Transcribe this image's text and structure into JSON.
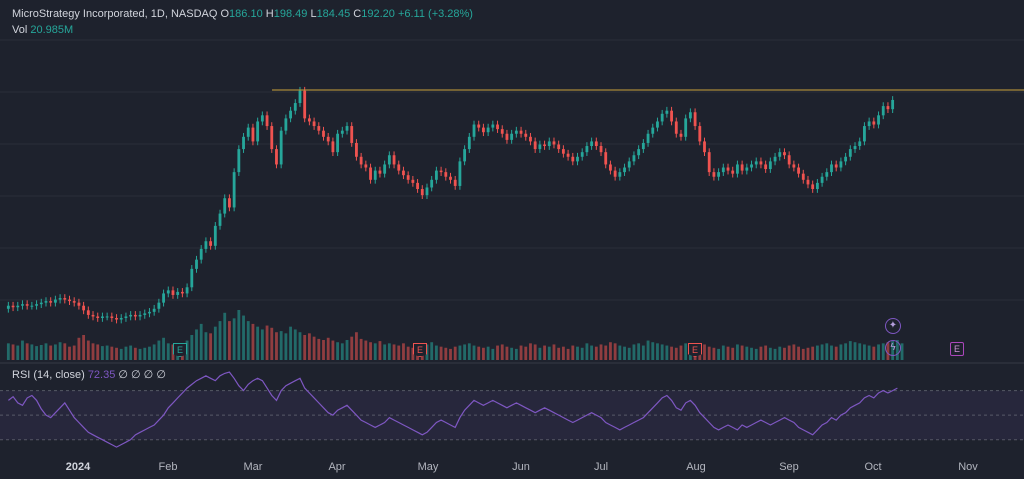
{
  "header": {
    "symbol": "MicroStrategy Incorporated, 1D, NASDAQ",
    "o_label": "O",
    "o_value": "186.10",
    "h_label": "H",
    "h_value": "198.49",
    "l_label": "L",
    "l_value": "184.45",
    "c_label": "C",
    "c_value": "192.20",
    "change": "+6.11 (+3.28%)",
    "vol_label": "Vol",
    "vol_value": "20.985M"
  },
  "rsi_header": {
    "label": "RSI (14, close)",
    "value": "72.35",
    "extras": "∅ ∅ ∅ ∅"
  },
  "events": {
    "earnings_1": "E",
    "earnings_2": "E",
    "earnings_3": "E",
    "earnings_4": "E",
    "dividend_icon": "✦",
    "split_icon": "ϟ"
  },
  "colors": {
    "up": "#26a69a",
    "down": "#ef5350",
    "background": "#1e222d",
    "resistance": "#c9a23a",
    "rsi": "#7e57c2"
  },
  "chart_data": {
    "type": "candlestick",
    "title": "MicroStrategy Incorporated, 1D, NASDAQ",
    "x_axis_labels": [
      "2024",
      "Feb",
      "Mar",
      "Apr",
      "May",
      "Jun",
      "Jul",
      "Aug",
      "Sep",
      "Oct",
      "Nov"
    ],
    "resistance_level": 198.5,
    "price_range": [
      50,
      205
    ],
    "rsi_range": [
      20,
      90
    ],
    "rsi_bands": [
      30,
      70
    ],
    "candles": [
      [
        56,
        58
      ],
      [
        58,
        57
      ],
      [
        57,
        58
      ],
      [
        58,
        59
      ],
      [
        59,
        58
      ],
      [
        58,
        58
      ],
      [
        58,
        59
      ],
      [
        59,
        60
      ],
      [
        60,
        61
      ],
      [
        61,
        60
      ],
      [
        60,
        62
      ],
      [
        62,
        63
      ],
      [
        63,
        62
      ],
      [
        62,
        61
      ],
      [
        61,
        60
      ],
      [
        60,
        58
      ],
      [
        58,
        55
      ],
      [
        55,
        52
      ],
      [
        52,
        51
      ],
      [
        51,
        50
      ],
      [
        50,
        51
      ],
      [
        51,
        51
      ],
      [
        51,
        50
      ],
      [
        50,
        49
      ],
      [
        49,
        50
      ],
      [
        50,
        51
      ],
      [
        51,
        52
      ],
      [
        52,
        51
      ],
      [
        51,
        52
      ],
      [
        52,
        53
      ],
      [
        53,
        54
      ],
      [
        54,
        56
      ],
      [
        56,
        60
      ],
      [
        60,
        66
      ],
      [
        66,
        68
      ],
      [
        68,
        65
      ],
      [
        65,
        67
      ],
      [
        67,
        66
      ],
      [
        66,
        70
      ],
      [
        70,
        82
      ],
      [
        82,
        88
      ],
      [
        88,
        95
      ],
      [
        95,
        100
      ],
      [
        100,
        97
      ],
      [
        97,
        110
      ],
      [
        110,
        118
      ],
      [
        118,
        128
      ],
      [
        128,
        122
      ],
      [
        122,
        145
      ],
      [
        145,
        160
      ],
      [
        160,
        168
      ],
      [
        168,
        174
      ],
      [
        174,
        165
      ],
      [
        165,
        178
      ],
      [
        178,
        182
      ],
      [
        182,
        175
      ],
      [
        175,
        160
      ],
      [
        160,
        150
      ],
      [
        150,
        172
      ],
      [
        172,
        180
      ],
      [
        180,
        185
      ],
      [
        185,
        190
      ],
      [
        190,
        198
      ],
      [
        198,
        180
      ],
      [
        180,
        178
      ],
      [
        178,
        175
      ],
      [
        175,
        172
      ],
      [
        172,
        168
      ],
      [
        168,
        165
      ],
      [
        165,
        158
      ],
      [
        158,
        170
      ],
      [
        170,
        172
      ],
      [
        172,
        175
      ],
      [
        175,
        164
      ],
      [
        164,
        155
      ],
      [
        155,
        150
      ],
      [
        150,
        148
      ],
      [
        148,
        140
      ],
      [
        140,
        146
      ],
      [
        146,
        144
      ],
      [
        144,
        150
      ],
      [
        150,
        156
      ],
      [
        156,
        150
      ],
      [
        150,
        146
      ],
      [
        146,
        143
      ],
      [
        143,
        140
      ],
      [
        140,
        138
      ],
      [
        138,
        134
      ],
      [
        134,
        130
      ],
      [
        130,
        135
      ],
      [
        135,
        140
      ],
      [
        140,
        146
      ],
      [
        146,
        145
      ],
      [
        145,
        142
      ],
      [
        142,
        140
      ],
      [
        140,
        136
      ],
      [
        136,
        152
      ],
      [
        152,
        160
      ],
      [
        160,
        168
      ],
      [
        168,
        176
      ],
      [
        176,
        174
      ],
      [
        174,
        171
      ],
      [
        171,
        174
      ],
      [
        174,
        176
      ],
      [
        176,
        173
      ],
      [
        173,
        170
      ],
      [
        170,
        166
      ],
      [
        166,
        170
      ],
      [
        170,
        172
      ],
      [
        172,
        170
      ],
      [
        170,
        168
      ],
      [
        168,
        165
      ],
      [
        165,
        160
      ],
      [
        160,
        163
      ],
      [
        163,
        162
      ],
      [
        162,
        165
      ],
      [
        165,
        163
      ],
      [
        163,
        160
      ],
      [
        160,
        157
      ],
      [
        157,
        155
      ],
      [
        155,
        152
      ],
      [
        152,
        155
      ],
      [
        155,
        158
      ],
      [
        158,
        162
      ],
      [
        162,
        165
      ],
      [
        165,
        162
      ],
      [
        162,
        158
      ],
      [
        158,
        150
      ],
      [
        150,
        146
      ],
      [
        146,
        142
      ],
      [
        142,
        145
      ],
      [
        145,
        148
      ],
      [
        148,
        152
      ],
      [
        152,
        156
      ],
      [
        156,
        160
      ],
      [
        160,
        164
      ],
      [
        164,
        170
      ],
      [
        170,
        174
      ],
      [
        174,
        178
      ],
      [
        178,
        183
      ],
      [
        183,
        185
      ],
      [
        185,
        178
      ],
      [
        178,
        170
      ],
      [
        170,
        168
      ],
      [
        168,
        180
      ],
      [
        180,
        184
      ],
      [
        184,
        175
      ],
      [
        175,
        165
      ],
      [
        165,
        158
      ],
      [
        158,
        145
      ],
      [
        145,
        142
      ],
      [
        142,
        145
      ],
      [
        145,
        148
      ],
      [
        148,
        146
      ],
      [
        146,
        144
      ],
      [
        144,
        150
      ],
      [
        150,
        146
      ],
      [
        146,
        148
      ],
      [
        148,
        150
      ],
      [
        150,
        152
      ],
      [
        152,
        150
      ],
      [
        150,
        147
      ],
      [
        147,
        152
      ],
      [
        152,
        155
      ],
      [
        155,
        158
      ],
      [
        158,
        156
      ],
      [
        156,
        150
      ],
      [
        150,
        148
      ],
      [
        148,
        144
      ],
      [
        144,
        140
      ],
      [
        140,
        137
      ],
      [
        137,
        134
      ],
      [
        134,
        138
      ],
      [
        138,
        142
      ],
      [
        142,
        145
      ],
      [
        145,
        150
      ],
      [
        150,
        148
      ],
      [
        148,
        152
      ],
      [
        152,
        155
      ],
      [
        155,
        160
      ],
      [
        160,
        162
      ],
      [
        162,
        165
      ],
      [
        165,
        175
      ],
      [
        175,
        178
      ],
      [
        178,
        176
      ],
      [
        176,
        182
      ],
      [
        182,
        188
      ],
      [
        188,
        186
      ],
      [
        186,
        192
      ]
    ],
    "volume": [
      30,
      28,
      26,
      35,
      30,
      28,
      25,
      27,
      30,
      26,
      28,
      32,
      30,
      24,
      26,
      40,
      45,
      35,
      30,
      28,
      25,
      26,
      24,
      22,
      20,
      24,
      26,
      22,
      20,
      22,
      24,
      28,
      35,
      40,
      30,
      28,
      26,
      30,
      35,
      45,
      55,
      65,
      50,
      48,
      60,
      70,
      85,
      70,
      75,
      90,
      80,
      70,
      65,
      60,
      55,
      62,
      58,
      50,
      52,
      48,
      60,
      55,
      50,
      45,
      48,
      42,
      38,
      36,
      40,
      35,
      32,
      30,
      36,
      42,
      50,
      38,
      35,
      32,
      30,
      34,
      28,
      30,
      28,
      26,
      30,
      24,
      22,
      26,
      30,
      28,
      32,
      26,
      24,
      22,
      20,
      24,
      26,
      28,
      30,
      26,
      24,
      22,
      24,
      20,
      26,
      28,
      24,
      22,
      20,
      26,
      24,
      30,
      28,
      22,
      26,
      24,
      28,
      22,
      24,
      20,
      26,
      24,
      22,
      30,
      26,
      24,
      28,
      26,
      32,
      30,
      26,
      24,
      22,
      28,
      30,
      26,
      35,
      32,
      30,
      28,
      26,
      24,
      22,
      26,
      30,
      28,
      24,
      26,
      28,
      24,
      22,
      20,
      26,
      24,
      22,
      28,
      26,
      24,
      22,
      20,
      24,
      26,
      22,
      20,
      24,
      22,
      26,
      28,
      24,
      20,
      22,
      24,
      26,
      28,
      30,
      26,
      24,
      28,
      30,
      34,
      32,
      30,
      28,
      26,
      24,
      28,
      30,
      32,
      34,
      36,
      30
    ],
    "rsi": [
      62,
      65,
      60,
      58,
      64,
      66,
      62,
      55,
      50,
      48,
      52,
      56,
      60,
      54,
      48,
      44,
      40,
      36,
      34,
      32,
      30,
      28,
      26,
      24,
      26,
      28,
      30,
      34,
      36,
      38,
      40,
      42,
      46,
      50,
      56,
      60,
      64,
      68,
      72,
      75,
      78,
      80,
      82,
      80,
      78,
      82,
      84,
      85,
      80,
      74,
      70,
      75,
      78,
      80,
      78,
      72,
      66,
      62,
      70,
      74,
      76,
      78,
      80,
      72,
      68,
      64,
      60,
      56,
      52,
      50,
      54,
      56,
      58,
      54,
      50,
      46,
      44,
      42,
      40,
      42,
      44,
      48,
      46,
      44,
      42,
      40,
      38,
      36,
      34,
      36,
      40,
      44,
      46,
      44,
      42,
      40,
      48,
      54,
      58,
      62,
      60,
      58,
      60,
      62,
      60,
      58,
      56,
      58,
      60,
      58,
      56,
      54,
      52,
      54,
      56,
      54,
      52,
      50,
      48,
      46,
      44,
      46,
      48,
      50,
      52,
      50,
      48,
      44,
      42,
      40,
      38,
      40,
      42,
      44,
      46,
      48,
      52,
      56,
      60,
      64,
      66,
      62,
      56,
      54,
      60,
      62,
      58,
      52,
      48,
      44,
      40,
      38,
      40,
      42,
      40,
      38,
      42,
      40,
      42,
      44,
      46,
      44,
      42,
      44,
      46,
      48,
      46,
      44,
      40,
      38,
      36,
      34,
      38,
      42,
      44,
      48,
      46,
      50,
      52,
      56,
      58,
      60,
      64,
      66,
      64,
      68,
      70,
      68,
      70,
      72
    ]
  }
}
